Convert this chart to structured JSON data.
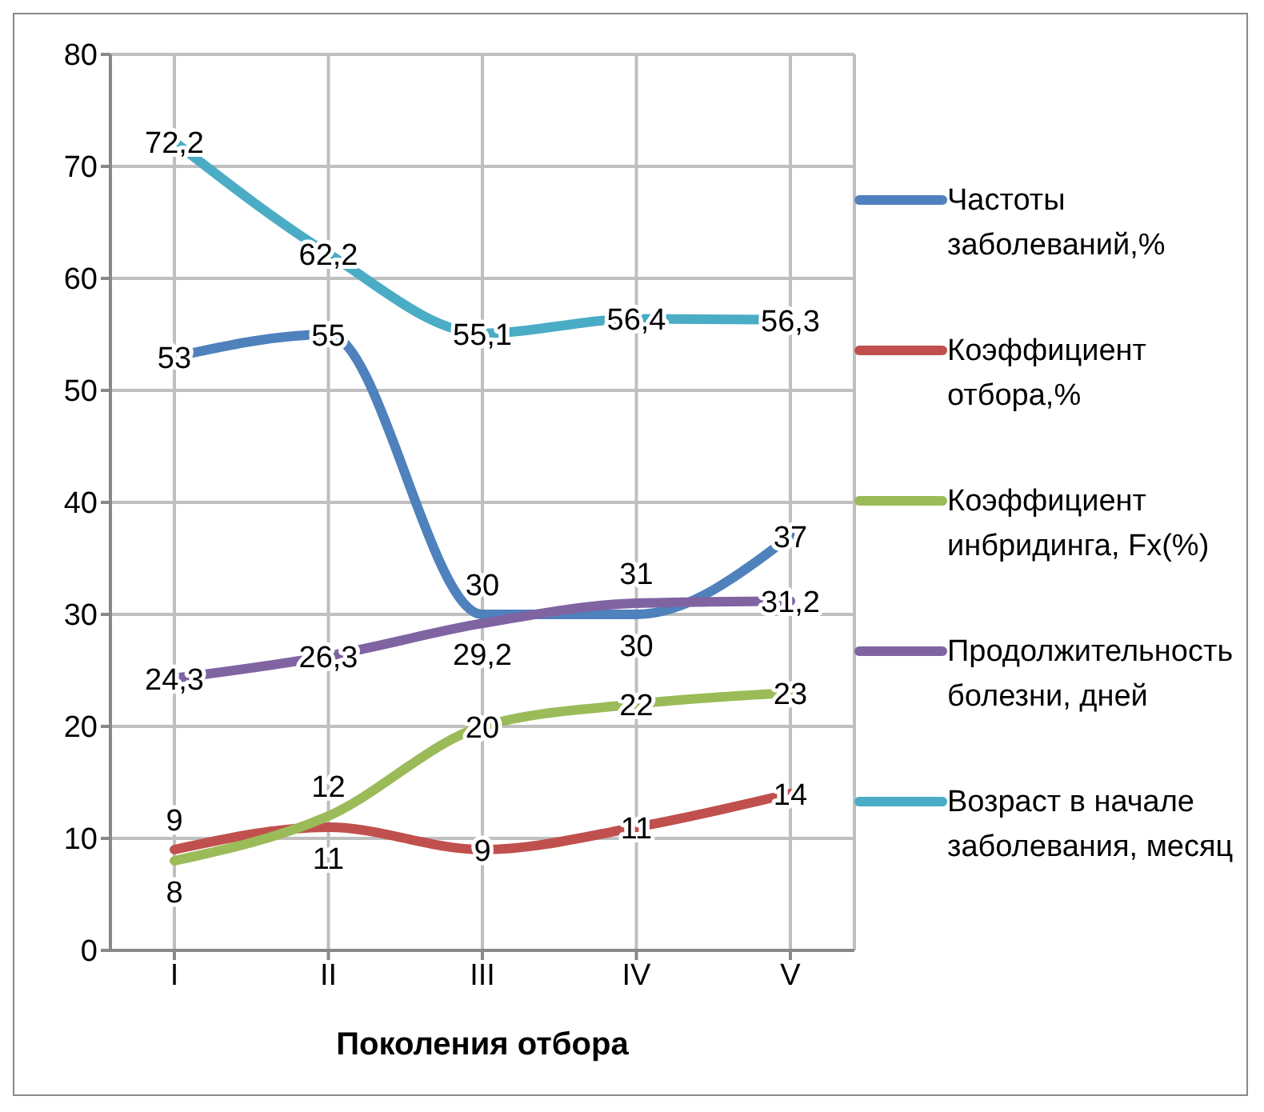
{
  "chart_data": {
    "type": "line",
    "xlabel": "Поколения отбора",
    "categories": [
      "I",
      "II",
      "III",
      "IV",
      "V"
    ],
    "ylim": [
      0,
      80
    ],
    "yticks": [
      0,
      10,
      20,
      30,
      40,
      50,
      60,
      70,
      80
    ],
    "grid": true,
    "legend": "right",
    "marker": "none",
    "line_style": "solid",
    "series": [
      {
        "name": "Частоты заболеваний,%",
        "color": "#4f81bd",
        "values": [
          53,
          55,
          30,
          30,
          37
        ],
        "value_labels": [
          "53",
          "55",
          "30",
          "30",
          "37"
        ]
      },
      {
        "name": "Коэффициент отбора,%",
        "color": "#c0504d",
        "values": [
          9,
          11,
          9,
          11,
          14
        ],
        "value_labels": [
          "9",
          "11",
          "9",
          "11",
          "14"
        ]
      },
      {
        "name": "Коэффициент инбридинга, Fx(%)",
        "color": "#9bbb59",
        "values": [
          8,
          12,
          20,
          22,
          23
        ],
        "value_labels": [
          "8",
          "12",
          "20",
          "22",
          "23"
        ]
      },
      {
        "name": "Продолжительность болезни, дней",
        "color": "#8064a2",
        "values": [
          24.3,
          26.3,
          29.2,
          31,
          31.2
        ],
        "value_labels": [
          "24,3",
          "26,3",
          "29,2",
          "31",
          "31,2"
        ]
      },
      {
        "name": "Возраст в начале заболевания, месяц",
        "color": "#4bacc6",
        "values": [
          72.2,
          62.2,
          55.1,
          56.4,
          56.3
        ],
        "value_labels": [
          "72,2",
          "62,2",
          "55,1",
          "56,4",
          "56,3"
        ]
      }
    ]
  }
}
